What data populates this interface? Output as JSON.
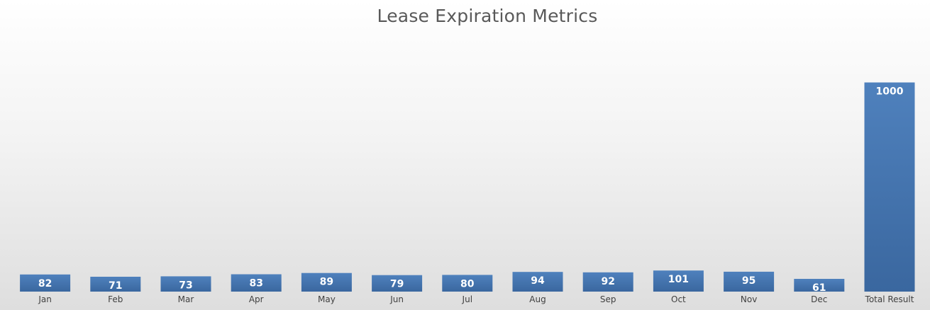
{
  "chart_data": {
    "type": "bar",
    "title": "Lease Expiration Metrics",
    "categories": [
      "Jan",
      "Feb",
      "Mar",
      "Apr",
      "May",
      "Jun",
      "Jul",
      "Aug",
      "Sep",
      "Oct",
      "Nov",
      "Dec",
      "Total Result"
    ],
    "values": [
      82,
      71,
      73,
      83,
      89,
      79,
      80,
      94,
      92,
      101,
      95,
      61,
      1000
    ],
    "xlabel": "",
    "ylabel": "",
    "ylim": [
      0,
      1070
    ],
    "grid": false,
    "legend": "none",
    "data_labels": "inside-end",
    "colors": {
      "bar_top": "#4f81bd",
      "bar_bottom": "#3a679f",
      "label": "#ffffff",
      "tick": "#404040",
      "title": "#595959"
    }
  }
}
